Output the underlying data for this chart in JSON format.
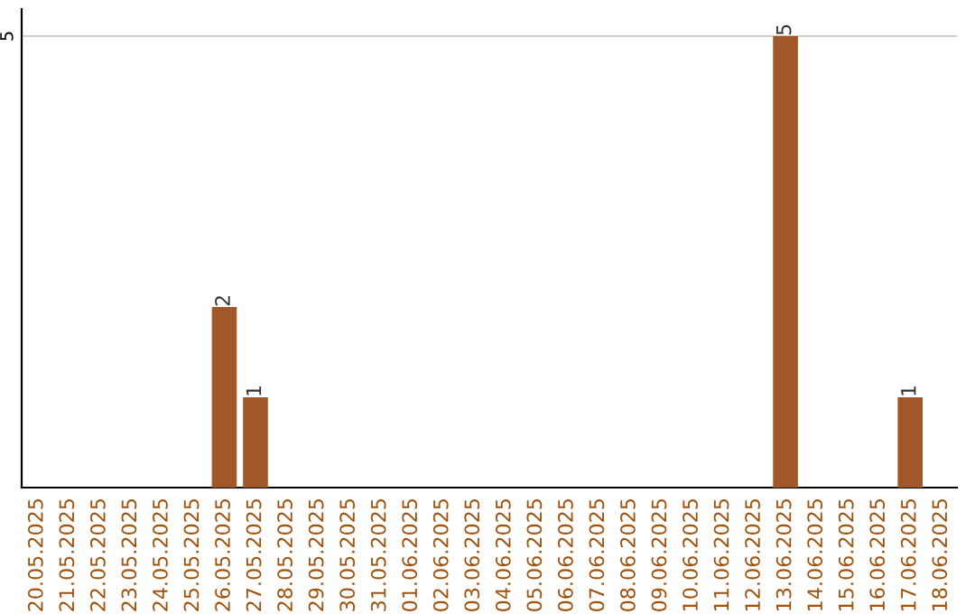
{
  "chart_data": {
    "type": "bar",
    "categories": [
      "20.05.2025",
      "21.05.2025",
      "22.05.2025",
      "23.05.2025",
      "24.05.2025",
      "25.05.2025",
      "26.05.2025",
      "27.05.2025",
      "28.05.2025",
      "29.05.2025",
      "30.05.2025",
      "31.05.2025",
      "01.06.2025",
      "02.06.2025",
      "03.06.2025",
      "04.06.2025",
      "05.06.2025",
      "06.06.2025",
      "07.06.2025",
      "08.06.2025",
      "09.06.2025",
      "10.06.2025",
      "11.06.2025",
      "12.06.2025",
      "13.06.2025",
      "14.06.2025",
      "15.06.2025",
      "16.06.2025",
      "17.06.2025",
      "18.06.2025"
    ],
    "values": [
      0,
      0,
      0,
      0,
      0,
      0,
      2,
      1,
      0,
      0,
      0,
      0,
      0,
      0,
      0,
      0,
      0,
      0,
      0,
      0,
      0,
      0,
      0,
      0,
      5,
      0,
      0,
      0,
      1,
      0
    ],
    "color": "#a0582a",
    "value_labels": [
      null,
      null,
      null,
      null,
      null,
      null,
      "2",
      "1",
      null,
      null,
      null,
      null,
      null,
      null,
      null,
      null,
      null,
      null,
      null,
      null,
      null,
      null,
      null,
      null,
      "5",
      null,
      null,
      null,
      "1",
      null
    ],
    "ylim": [
      0,
      5.3
    ],
    "yticks": [
      5
    ],
    "grid": "y"
  }
}
